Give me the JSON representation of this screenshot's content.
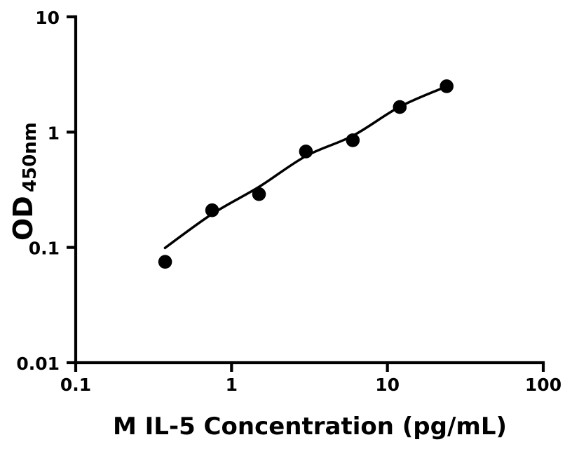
{
  "figure": {
    "background_color": "#ffffff"
  },
  "chart_data": {
    "type": "scatter",
    "title": "",
    "xlabel": "M IL-5 Concentration (pg/mL)",
    "ylabel_main": "OD",
    "ylabel_sub": "450nm",
    "x_scale": "log",
    "y_scale": "log",
    "xlim": [
      0.1,
      100
    ],
    "ylim": [
      0.01,
      10
    ],
    "grid": false,
    "legend": "none",
    "x_ticks": [
      {
        "value": 0.1,
        "label": "0.1"
      },
      {
        "value": 1,
        "label": "1"
      },
      {
        "value": 10,
        "label": "10"
      },
      {
        "value": 100,
        "label": "100"
      }
    ],
    "y_ticks": [
      {
        "value": 0.01,
        "label": "0.01"
      },
      {
        "value": 0.1,
        "label": "0.1"
      },
      {
        "value": 1,
        "label": "1"
      },
      {
        "value": 10,
        "label": "10"
      }
    ],
    "points": [
      {
        "x": 0.375,
        "y": 0.075
      },
      {
        "x": 0.75,
        "y": 0.21
      },
      {
        "x": 1.5,
        "y": 0.29
      },
      {
        "x": 3,
        "y": 0.68
      },
      {
        "x": 6,
        "y": 0.85
      },
      {
        "x": 12,
        "y": 1.65
      },
      {
        "x": 24,
        "y": 2.5
      }
    ],
    "fit_curve": [
      {
        "x": 0.374,
        "y": 0.099
      },
      {
        "x": 0.75,
        "y": 0.195
      },
      {
        "x": 1.5,
        "y": 0.335
      },
      {
        "x": 3,
        "y": 0.62
      },
      {
        "x": 6,
        "y": 0.93
      },
      {
        "x": 12,
        "y": 1.66
      },
      {
        "x": 24,
        "y": 2.49
      }
    ],
    "colors": {
      "points": "#000000",
      "curve": "#000000",
      "axis": "#000000",
      "text": "#000000",
      "background": "#ffffff"
    }
  }
}
